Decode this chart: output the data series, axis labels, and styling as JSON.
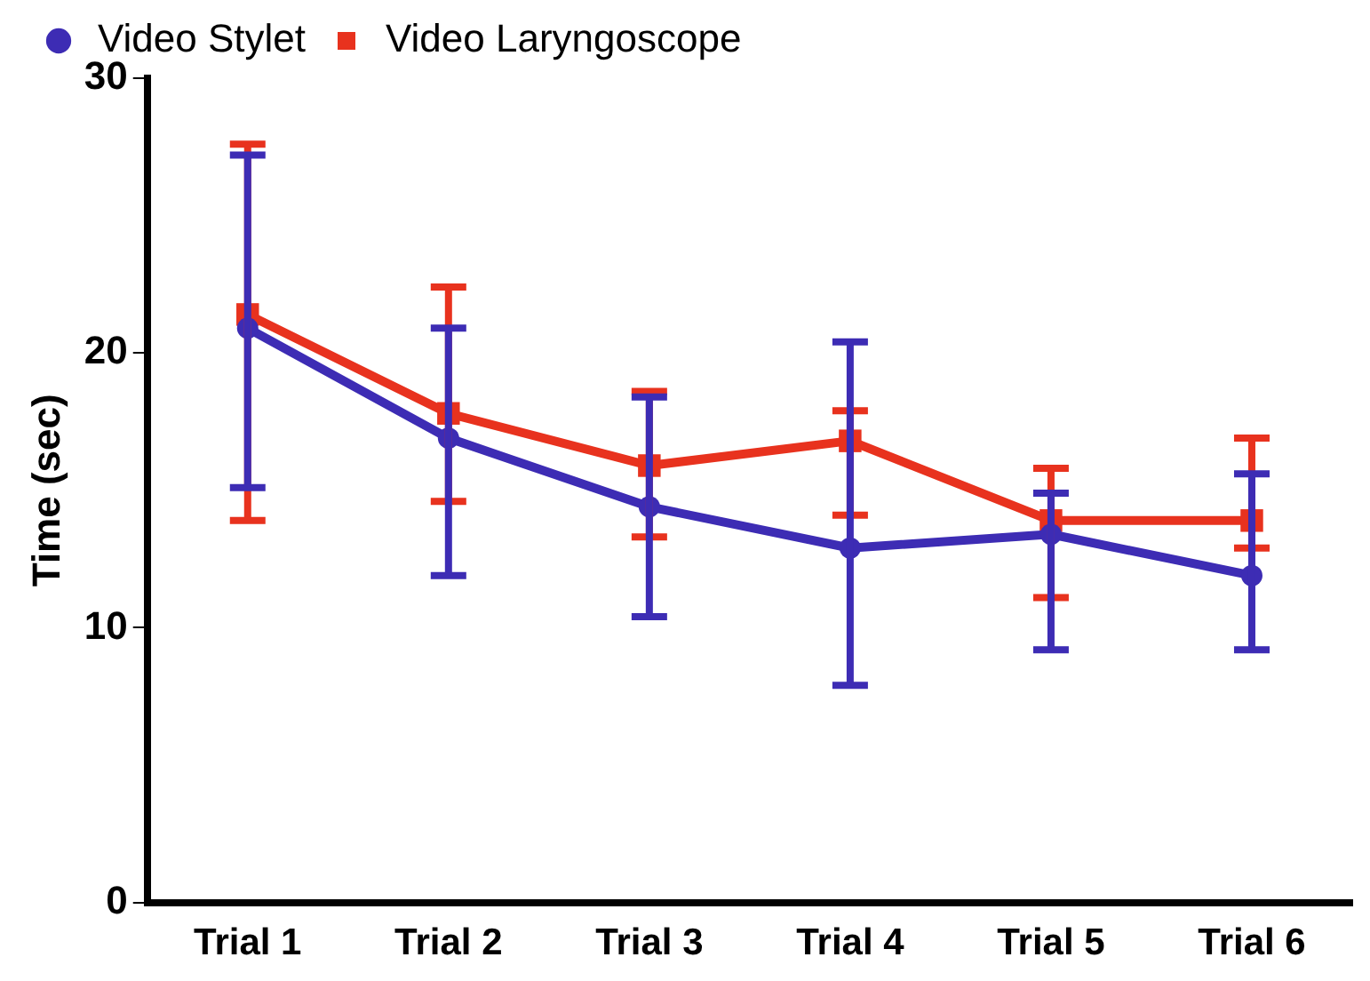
{
  "chart_data": {
    "type": "line",
    "ylabel": "Time (sec)",
    "categories": [
      "Trial 1",
      "Trial 2",
      "Trial 3",
      "Trial 4",
      "Trial 5",
      "Trial 6"
    ],
    "series": [
      {
        "name": "Video Stylet",
        "color": "#3d2cb4",
        "marker": "circle",
        "values": [
          20.9,
          16.9,
          14.4,
          12.9,
          13.4,
          11.9
        ],
        "errors": [
          [
            15.1,
            27.2
          ],
          [
            11.9,
            20.9
          ],
          [
            10.4,
            18.4
          ],
          [
            7.9,
            20.4
          ],
          [
            9.2,
            14.9
          ],
          [
            9.2,
            15.6
          ]
        ]
      },
      {
        "name": "Video Laryngoscope",
        "color": "#e8321e",
        "marker": "square",
        "values": [
          21.4,
          17.8,
          15.9,
          16.8,
          13.9,
          13.9
        ],
        "errors": [
          [
            13.9,
            27.6
          ],
          [
            14.6,
            22.4
          ],
          [
            13.3,
            18.6
          ],
          [
            14.1,
            17.9
          ],
          [
            11.1,
            15.8
          ],
          [
            12.9,
            16.9
          ]
        ]
      }
    ],
    "ylim": [
      0,
      30
    ],
    "yticks": [
      0,
      10,
      20,
      30
    ],
    "grid": false,
    "legend": "top left",
    "line_style": "solid"
  }
}
